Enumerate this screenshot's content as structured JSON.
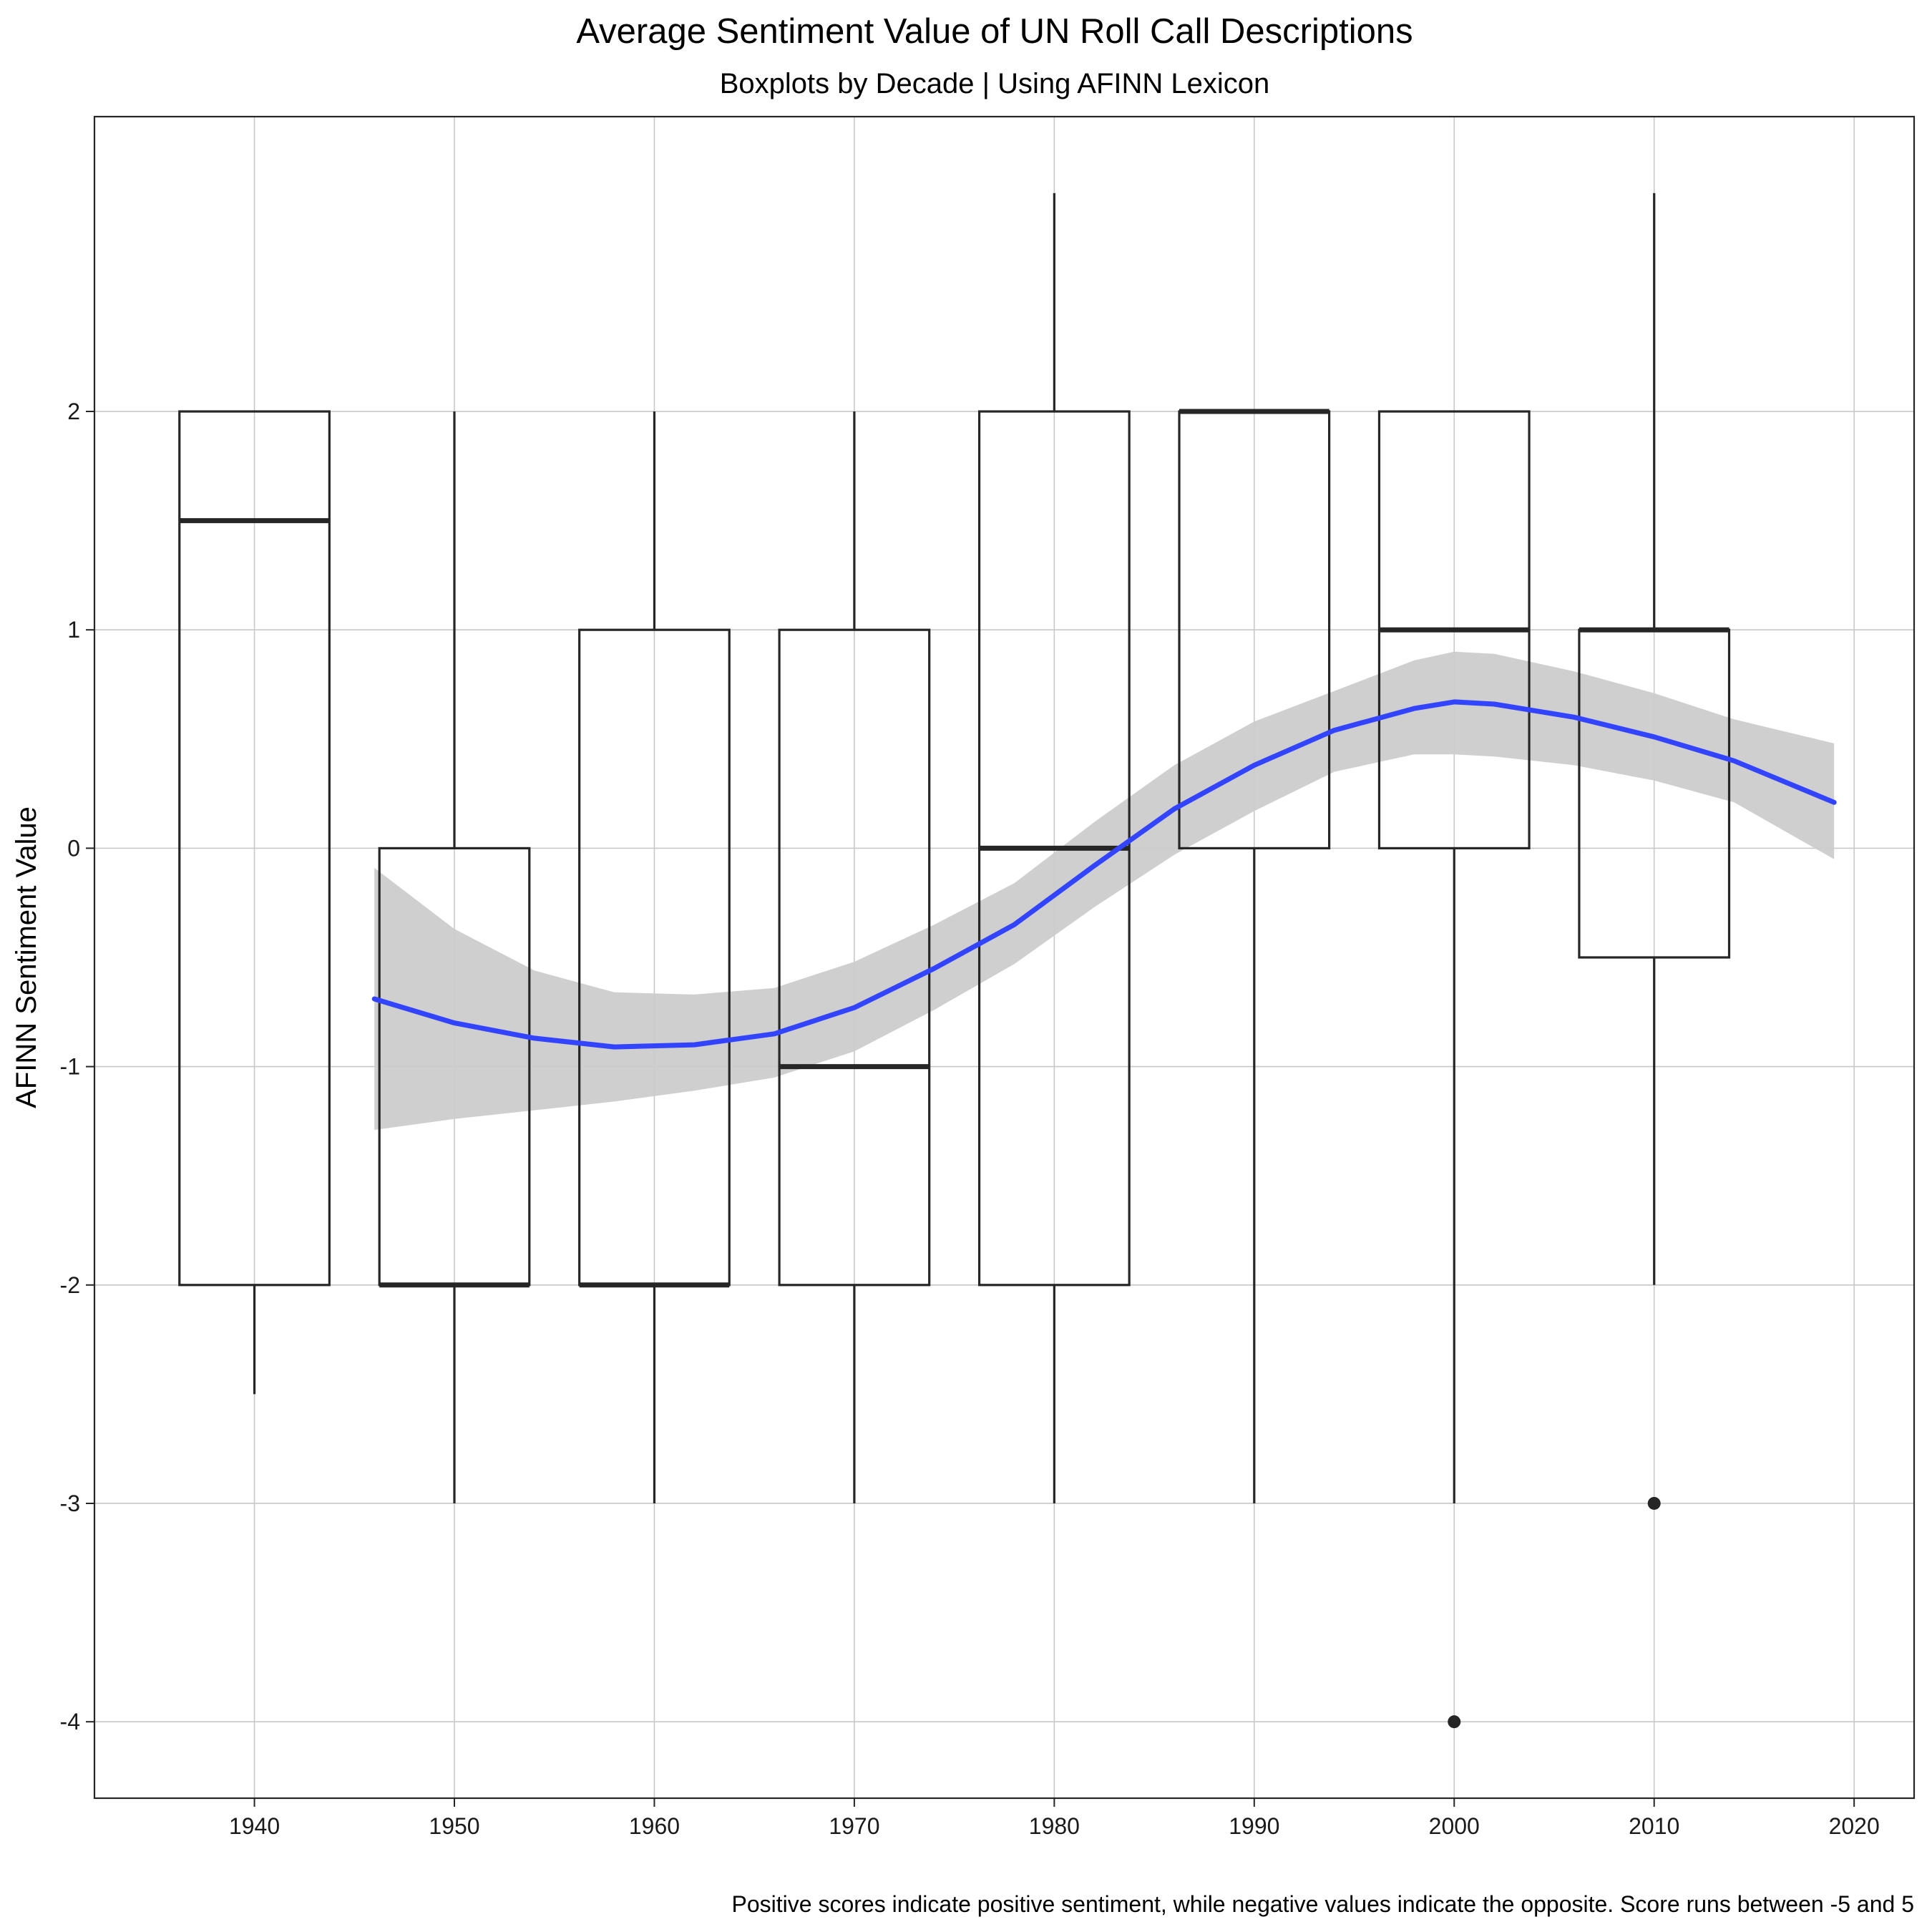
{
  "chart_data": {
    "type": "boxplot",
    "title": "Average Sentiment Value of UN Roll Call Descriptions",
    "subtitle": "Boxplots by Decade | Using AFINN Lexicon",
    "xlabel": "",
    "ylabel": "AFINN Sentiment Value",
    "caption": "Positive scores indicate positive sentiment, while negative values indicate the opposite. Score runs between -5 and 5",
    "xlim": [
      1932,
      2023
    ],
    "ylim": [
      -4.35,
      3.35
    ],
    "x_ticks": [
      1940,
      1950,
      1960,
      1970,
      1980,
      1990,
      2000,
      2010,
      2020
    ],
    "x_tick_labels": [
      "1940",
      "1950",
      "1960",
      "1970",
      "1980",
      "1990",
      "2000",
      "2010",
      "2020"
    ],
    "y_ticks": [
      -4,
      -3,
      -2,
      -1,
      0,
      1,
      2
    ],
    "y_tick_labels": [
      "-4",
      "-3",
      "-2",
      "-1",
      "0",
      "1",
      "2"
    ],
    "grid": true,
    "box_width_years": 7.5,
    "boxes": [
      {
        "x": 1940,
        "lower_whisker": -2.5,
        "q1": -2,
        "median": 1.5,
        "q3": 2,
        "upper_whisker": 2,
        "outliers": []
      },
      {
        "x": 1950,
        "lower_whisker": -3,
        "q1": -2,
        "median": -2,
        "q3": 0,
        "upper_whisker": 2,
        "outliers": []
      },
      {
        "x": 1960,
        "lower_whisker": -3,
        "q1": -2,
        "median": -2,
        "q3": 1,
        "upper_whisker": 2,
        "outliers": []
      },
      {
        "x": 1970,
        "lower_whisker": -3,
        "q1": -2,
        "median": -1,
        "q3": 1,
        "upper_whisker": 2,
        "outliers": []
      },
      {
        "x": 1980,
        "lower_whisker": -3,
        "q1": -2,
        "median": 0,
        "q3": 2,
        "upper_whisker": 3,
        "outliers": []
      },
      {
        "x": 1990,
        "lower_whisker": -3,
        "q1": 0,
        "median": 2,
        "q3": 2,
        "upper_whisker": 2,
        "outliers": []
      },
      {
        "x": 2000,
        "lower_whisker": -3,
        "q1": 0,
        "median": 1,
        "q3": 2,
        "upper_whisker": 2,
        "outliers": [
          -4
        ]
      },
      {
        "x": 2010,
        "lower_whisker": -2,
        "q1": -0.5,
        "median": 1,
        "q3": 1,
        "upper_whisker": 3,
        "outliers": [
          -3
        ]
      }
    ],
    "smooth": {
      "x": [
        1946,
        1950,
        1954,
        1958,
        1962,
        1966,
        1970,
        1974,
        1978,
        1982,
        1986,
        1990,
        1994,
        1998,
        2000,
        2002,
        2006,
        2010,
        2014,
        2019
      ],
      "y": [
        -0.69,
        -0.8,
        -0.87,
        -0.91,
        -0.9,
        -0.85,
        -0.73,
        -0.55,
        -0.35,
        -0.08,
        0.18,
        0.38,
        0.54,
        0.64,
        0.67,
        0.66,
        0.6,
        0.51,
        0.4,
        0.21
      ],
      "lower": [
        -1.29,
        -1.24,
        -1.2,
        -1.16,
        -1.11,
        -1.05,
        -0.93,
        -0.74,
        -0.53,
        -0.27,
        -0.03,
        0.17,
        0.35,
        0.43,
        0.43,
        0.42,
        0.38,
        0.31,
        0.21,
        -0.05
      ],
      "upper": [
        -0.09,
        -0.37,
        -0.56,
        -0.66,
        -0.67,
        -0.64,
        -0.52,
        -0.35,
        -0.16,
        0.12,
        0.38,
        0.58,
        0.72,
        0.86,
        0.9,
        0.89,
        0.81,
        0.71,
        0.59,
        0.48
      ],
      "color": "#3344ff",
      "band_color": "#cccccc"
    },
    "colors": {
      "box_stroke": "#262626",
      "grid": "#c8c8c8",
      "panel_border": "#262626"
    }
  }
}
